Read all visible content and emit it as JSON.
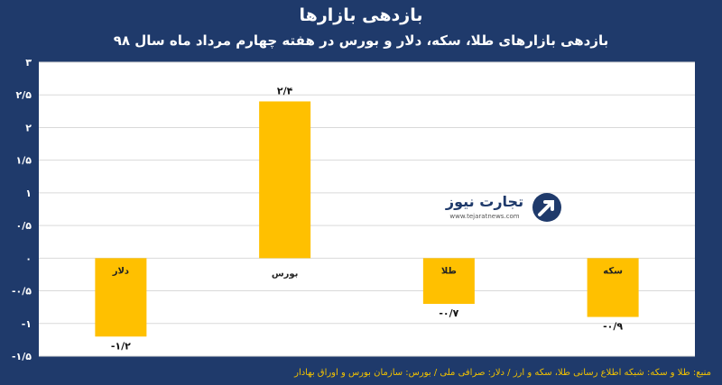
{
  "chart_data": {
    "type": "bar",
    "title": "بازدهی بازارها",
    "subtitle": "بازدهی بازارهای طلا، سکه، دلار و بورس در هفته چهارم مرداد ماه سال ۹۸",
    "categories": [
      "دلار",
      "بورس",
      "طلا",
      "سکه"
    ],
    "values": [
      -1.2,
      2.4,
      -0.7,
      -0.9
    ],
    "value_labels": [
      "-۱/۲",
      "۲/۴",
      "-۰/۷",
      "-۰/۹"
    ],
    "yticks": [
      {
        "value": 3,
        "label": "۳"
      },
      {
        "value": 2.5,
        "label": "۲/۵"
      },
      {
        "value": 2,
        "label": "۲"
      },
      {
        "value": 1.5,
        "label": "۱/۵"
      },
      {
        "value": 1,
        "label": "۱"
      },
      {
        "value": 0.5,
        "label": "۰/۵"
      },
      {
        "value": 0,
        "label": "۰"
      },
      {
        "value": -0.5,
        "label": "-۰/۵"
      },
      {
        "value": -1,
        "label": "-۱"
      },
      {
        "value": -1.5,
        "label": "-۱/۵"
      }
    ],
    "ylim": [
      -1.5,
      3
    ],
    "grid": true,
    "bar_color": "#ffc000",
    "grid_color": "#d9d9d9"
  },
  "source": "منبع: طلا و سکه: شبکه اطلاع رسانی طلا، سکه و ارز / دلار: صرافی ملی / بورس: سازمان بورس و اوراق بهادار",
  "logo": {
    "name": "تجارت نیوز",
    "url": "www.tejaratnews.com"
  },
  "colors": {
    "background": "#1f3a6b",
    "plot": "#ffffff"
  }
}
